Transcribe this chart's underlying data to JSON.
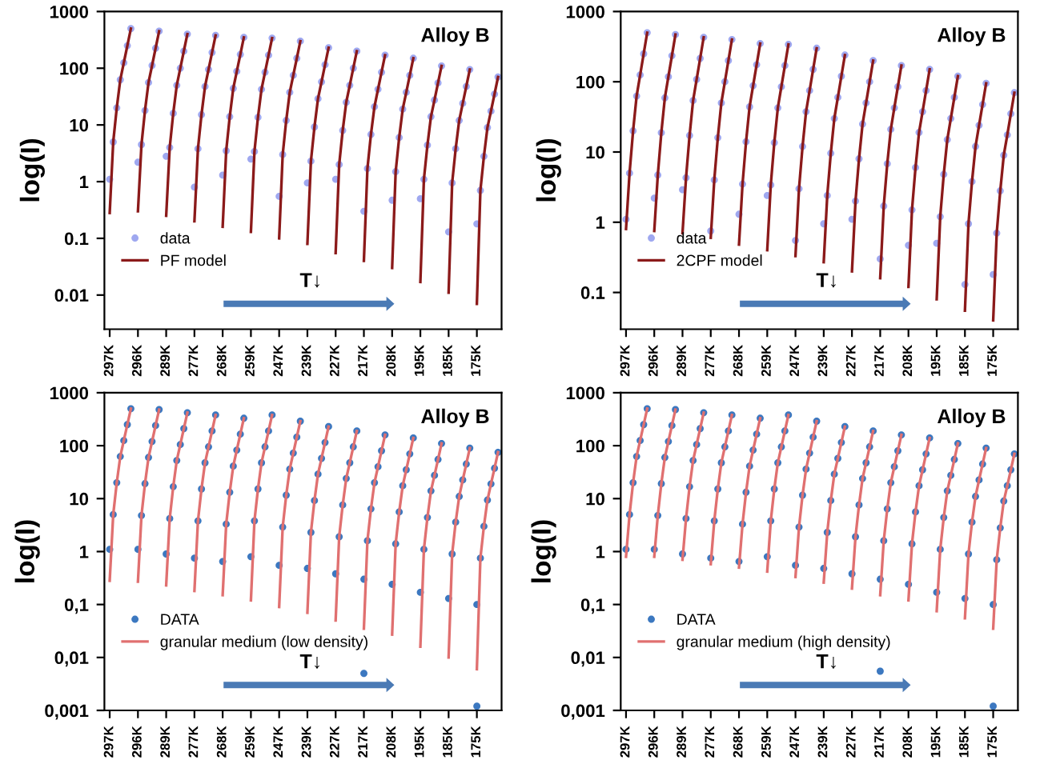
{
  "chart_data": [
    {
      "type": "line",
      "ylabel": "log(I)",
      "annotations": [
        "Alloy B",
        "T↓"
      ],
      "log": "y",
      "legend": "bottom left",
      "ylim": [
        0.0025,
        1000
      ],
      "yticks": [
        0.01,
        0.1,
        1,
        10,
        100,
        1000
      ],
      "categories": [
        "297K",
        null,
        null,
        null,
        null,
        null,
        null,
        null,
        "296K",
        null,
        null,
        null,
        null,
        null,
        null,
        null,
        "289K",
        null,
        null,
        null,
        null,
        null,
        null,
        null,
        "277K",
        null,
        null,
        null,
        null,
        null,
        null,
        null,
        "268K",
        null,
        null,
        null,
        null,
        null,
        null,
        null,
        "259K",
        null,
        null,
        null,
        null,
        null,
        null,
        null,
        "247K",
        null,
        null,
        null,
        null,
        null,
        null,
        null,
        "239K",
        null,
        null,
        null,
        null,
        null,
        null,
        null,
        "227K",
        null,
        null,
        null,
        null,
        null,
        null,
        null,
        "217K",
        null,
        null,
        null,
        null,
        null,
        null,
        null,
        "208K",
        null,
        null,
        null,
        null,
        null,
        null,
        null,
        "195K",
        null,
        null,
        null,
        null,
        null,
        null,
        null,
        "185K",
        null,
        null,
        null,
        null,
        null,
        null,
        null,
        "175K",
        null,
        null,
        null,
        null,
        null,
        null,
        null
      ],
      "series": [
        {
          "name": "data",
          "type": "scatter",
          "marker": "circle",
          "color": "#9fa8f0",
          "values": [
            1.1,
            5,
            20,
            62.5,
            125,
            250,
            500,
            null,
            2.2,
            4.5,
            18,
            56,
            112,
            225,
            450,
            null,
            2.8,
            4,
            16,
            50,
            100,
            200,
            400,
            null,
            0.8,
            3.8,
            15.2,
            47.5,
            95,
            190,
            380,
            null,
            1.3,
            3.5,
            14,
            44,
            88,
            175,
            350,
            null,
            2.5,
            3.4,
            13.6,
            42.5,
            85,
            170,
            340,
            null,
            0.55,
            3,
            12,
            37.5,
            75,
            150,
            300,
            null,
            0.95,
            2.3,
            9.2,
            29,
            57.5,
            115,
            230,
            null,
            1.1,
            2,
            8,
            25,
            50,
            100,
            200,
            null,
            0.3,
            1.7,
            6.8,
            21,
            42.5,
            85,
            170,
            null,
            0.47,
            1.5,
            6,
            19,
            37.5,
            75,
            150,
            null,
            0.5,
            1.1,
            4.4,
            14,
            27.5,
            55,
            110,
            null,
            0.13,
            0.95,
            3.8,
            12,
            24,
            47.5,
            95,
            null,
            0.18,
            0.7,
            2.8,
            9,
            17.5,
            35,
            70,
            null
          ]
        },
        {
          "name": "PF model",
          "color": "#8b1a1a",
          "values": [
            0.28,
            5,
            20,
            62.5,
            125,
            250,
            500,
            null,
            0.3,
            4.5,
            18,
            56,
            112,
            225,
            450,
            null,
            0.25,
            4,
            16,
            50,
            100,
            200,
            400,
            null,
            0.2,
            3.8,
            15.2,
            47.5,
            95,
            190,
            380,
            null,
            0.16,
            3.5,
            14,
            44,
            88,
            175,
            350,
            null,
            0.13,
            3.4,
            13.6,
            42.5,
            85,
            170,
            340,
            null,
            0.1,
            3,
            12,
            37.5,
            75,
            150,
            300,
            null,
            0.08,
            2.3,
            9.2,
            29,
            57.5,
            115,
            230,
            null,
            0.055,
            2,
            8,
            25,
            50,
            100,
            200,
            null,
            0.04,
            1.7,
            6.8,
            21,
            42.5,
            85,
            170,
            null,
            0.03,
            1.5,
            6,
            19,
            37.5,
            75,
            150,
            null,
            0.017,
            1.1,
            4.4,
            14,
            27.5,
            55,
            110,
            null,
            0.011,
            0.95,
            3.8,
            12,
            24,
            47.5,
            95,
            null,
            0.007,
            0.7,
            2.8,
            9,
            17.5,
            35,
            70,
            null
          ]
        }
      ]
    },
    {
      "type": "line",
      "ylabel": "log(I)",
      "annotations": [
        "Alloy B",
        "T↓"
      ],
      "log": "y",
      "legend": "bottom left",
      "ylim": [
        0.03,
        1000
      ],
      "yticks": [
        0.1,
        1,
        10,
        100,
        1000
      ],
      "categories": [
        "297K",
        null,
        null,
        null,
        null,
        null,
        null,
        null,
        "296K",
        null,
        null,
        null,
        null,
        null,
        null,
        null,
        "289K",
        null,
        null,
        null,
        null,
        null,
        null,
        null,
        "277K",
        null,
        null,
        null,
        null,
        null,
        null,
        null,
        "268K",
        null,
        null,
        null,
        null,
        null,
        null,
        null,
        "259K",
        null,
        null,
        null,
        null,
        null,
        null,
        null,
        "247K",
        null,
        null,
        null,
        null,
        null,
        null,
        null,
        "239K",
        null,
        null,
        null,
        null,
        null,
        null,
        null,
        "227K",
        null,
        null,
        null,
        null,
        null,
        null,
        null,
        "217K",
        null,
        null,
        null,
        null,
        null,
        null,
        null,
        "208K",
        null,
        null,
        null,
        null,
        null,
        null,
        null,
        "195K",
        null,
        null,
        null,
        null,
        null,
        null,
        null,
        "185K",
        null,
        null,
        null,
        null,
        null,
        null,
        null,
        "175K",
        null,
        null,
        null,
        null,
        null,
        null,
        null
      ],
      "series": [
        {
          "name": "data",
          "type": "scatter",
          "marker": "circle",
          "color": "#9fa8f0",
          "values": [
            1.1,
            5,
            20,
            62.5,
            125,
            250,
            500,
            null,
            2.2,
            4.7,
            18.8,
            59,
            118,
            235,
            470,
            null,
            2.9,
            4.3,
            17.2,
            54,
            108,
            215,
            430,
            null,
            0.75,
            4,
            16,
            50,
            100,
            200,
            400,
            null,
            1.3,
            3.5,
            14,
            44,
            88,
            175,
            350,
            null,
            2.4,
            3.4,
            13.6,
            42.5,
            85,
            170,
            340,
            null,
            0.55,
            3,
            12,
            37.5,
            75,
            150,
            300,
            null,
            0.95,
            2.4,
            9.6,
            30,
            60,
            120,
            240,
            null,
            1.1,
            2,
            8,
            25,
            50,
            100,
            200,
            null,
            0.3,
            1.7,
            6.8,
            21,
            42.5,
            85,
            170,
            null,
            0.47,
            1.5,
            6,
            19,
            37.5,
            75,
            150,
            null,
            0.5,
            1.2,
            4.8,
            15,
            30,
            60,
            120,
            null,
            0.13,
            0.95,
            3.8,
            12,
            24,
            47.5,
            95,
            null,
            0.18,
            0.7,
            2.8,
            9,
            17.5,
            35,
            70,
            null
          ]
        },
        {
          "name": "2CPF model",
          "color": "#8b1a1a",
          "values": [
            0.8,
            5,
            20,
            62.5,
            125,
            250,
            500,
            null,
            0.75,
            4.7,
            18.8,
            59,
            118,
            235,
            470,
            null,
            0.7,
            4.3,
            17.2,
            54,
            108,
            215,
            430,
            null,
            0.6,
            4,
            16,
            50,
            100,
            200,
            400,
            null,
            0.48,
            3.5,
            14,
            44,
            88,
            175,
            350,
            null,
            0.4,
            3.4,
            13.6,
            42.5,
            85,
            170,
            340,
            null,
            0.33,
            3,
            12,
            37.5,
            75,
            150,
            300,
            null,
            0.27,
            2.4,
            9.6,
            30,
            60,
            120,
            240,
            null,
            0.2,
            2,
            8,
            25,
            50,
            100,
            200,
            null,
            0.16,
            1.7,
            6.8,
            21,
            42.5,
            85,
            170,
            null,
            0.12,
            1.5,
            6,
            19,
            37.5,
            75,
            150,
            null,
            0.08,
            1.2,
            4.8,
            15,
            30,
            60,
            120,
            null,
            0.055,
            0.95,
            3.8,
            12,
            24,
            47.5,
            95,
            null,
            0.04,
            0.7,
            2.8,
            9,
            17.5,
            35,
            70,
            null
          ]
        }
      ]
    },
    {
      "type": "line",
      "ylabel": "log(I)",
      "annotations": [
        "Alloy B",
        "T↓"
      ],
      "log": "y",
      "legend": "bottom left",
      "ylim": [
        0.001,
        1000
      ],
      "yticks": [
        {
          "value": 0.001,
          "label": "0,001"
        },
        {
          "value": 0.01,
          "label": "0,01"
        },
        {
          "value": 0.1,
          "label": "0,1"
        },
        1,
        10,
        100,
        1000
      ],
      "categories": [
        "297K",
        null,
        null,
        null,
        null,
        null,
        null,
        null,
        "296K",
        null,
        null,
        null,
        null,
        null,
        null,
        null,
        "289K",
        null,
        null,
        null,
        null,
        null,
        null,
        null,
        "277K",
        null,
        null,
        null,
        null,
        null,
        null,
        null,
        "268K",
        null,
        null,
        null,
        null,
        null,
        null,
        null,
        "259K",
        null,
        null,
        null,
        null,
        null,
        null,
        null,
        "247K",
        null,
        null,
        null,
        null,
        null,
        null,
        null,
        "239K",
        null,
        null,
        null,
        null,
        null,
        null,
        null,
        "227K",
        null,
        null,
        null,
        null,
        null,
        null,
        null,
        "217K",
        null,
        null,
        null,
        null,
        null,
        null,
        null,
        "208K",
        null,
        null,
        null,
        null,
        null,
        null,
        null,
        "195K",
        null,
        null,
        null,
        null,
        null,
        null,
        null,
        "185K",
        null,
        null,
        null,
        null,
        null,
        null,
        null,
        "175K",
        null,
        null,
        null,
        null,
        null,
        null,
        null
      ],
      "series": [
        {
          "name": "DATA",
          "type": "scatter",
          "marker": "circle",
          "color": "#3c78c0",
          "values": [
            1.1,
            5,
            20,
            62.5,
            125,
            250,
            500,
            null,
            1.1,
            4.8,
            19.2,
            60,
            120,
            240,
            480,
            null,
            0.9,
            4.2,
            16.8,
            52.5,
            105,
            210,
            420,
            null,
            0.75,
            3.8,
            15.2,
            47.5,
            95,
            190,
            380,
            null,
            0.65,
            3.3,
            13.2,
            41,
            82.5,
            165,
            330,
            null,
            0.8,
            3.8,
            15.2,
            47.5,
            95,
            190,
            380,
            null,
            0.55,
            2.9,
            11.6,
            36,
            72.5,
            145,
            290,
            null,
            0.48,
            2.3,
            9.2,
            29,
            57.5,
            115,
            230,
            null,
            0.38,
            1.9,
            7.6,
            24,
            47.5,
            95,
            190,
            null,
            0.3,
            1.6,
            6.4,
            20,
            40,
            80,
            160,
            null,
            0.24,
            1.4,
            5.6,
            17.5,
            35,
            70,
            140,
            null,
            0.17,
            1.1,
            4.4,
            14,
            27.5,
            55,
            110,
            null,
            0.13,
            0.9,
            3.6,
            11,
            22.5,
            45,
            90,
            null,
            0.1,
            0.75,
            3,
            9.4,
            19,
            37.5,
            75,
            null
          ]
        },
        {
          "type": "scatter",
          "marker": "circle",
          "color": "#3c78c0",
          "values": [
            null,
            null,
            null,
            null,
            null,
            null,
            null,
            null,
            null,
            null,
            null,
            null,
            null,
            null,
            null,
            null,
            null,
            null,
            null,
            null,
            null,
            null,
            null,
            null,
            null,
            null,
            null,
            null,
            null,
            null,
            null,
            null,
            null,
            null,
            null,
            null,
            null,
            null,
            null,
            null,
            null,
            null,
            null,
            null,
            null,
            null,
            null,
            null,
            null,
            null,
            null,
            null,
            null,
            null,
            null,
            null,
            null,
            null,
            null,
            null,
            null,
            null,
            null,
            null,
            null,
            null,
            null,
            null,
            null,
            null,
            null,
            null,
            0.005,
            null,
            null,
            null,
            null,
            null,
            null,
            null,
            null,
            null,
            null,
            null,
            null,
            null,
            null,
            null,
            null,
            null,
            null,
            null,
            null,
            null,
            null,
            null,
            null,
            null,
            null,
            null,
            null,
            null,
            null,
            null,
            0.0012,
            null,
            null,
            null,
            null,
            null,
            null,
            null
          ]
        },
        {
          "name": "granular medium (low density)",
          "color": "#e07070",
          "values": [
            0.28,
            5,
            20,
            62.5,
            125,
            250,
            500,
            null,
            0.27,
            4.8,
            19.2,
            60,
            120,
            240,
            480,
            null,
            0.23,
            4.2,
            16.8,
            52.5,
            105,
            210,
            420,
            null,
            0.18,
            3.8,
            15.2,
            47.5,
            95,
            190,
            380,
            null,
            0.15,
            3.3,
            13.2,
            41,
            82.5,
            165,
            330,
            null,
            0.12,
            3.8,
            15.2,
            47.5,
            95,
            190,
            380,
            null,
            0.09,
            2.9,
            11.6,
            36,
            72.5,
            145,
            290,
            null,
            0.07,
            2.3,
            9.2,
            29,
            57.5,
            115,
            230,
            null,
            0.05,
            1.9,
            7.6,
            24,
            47.5,
            95,
            190,
            null,
            0.035,
            1.6,
            6.4,
            20,
            40,
            80,
            160,
            null,
            0.027,
            1.4,
            5.6,
            17.5,
            35,
            70,
            140,
            null,
            0.016,
            1.1,
            4.4,
            14,
            27.5,
            55,
            110,
            null,
            0.01,
            0.9,
            3.6,
            11,
            22.5,
            45,
            90,
            null,
            0.006,
            0.75,
            3,
            9.4,
            19,
            37.5,
            75,
            null
          ]
        }
      ]
    },
    {
      "type": "line",
      "ylabel": "log(I)",
      "annotations": [
        "Alloy B",
        "T↓"
      ],
      "log": "y",
      "legend": "bottom left",
      "ylim": [
        0.001,
        1000
      ],
      "yticks": [
        {
          "value": 0.001,
          "label": "0,001"
        },
        {
          "value": 0.01,
          "label": "0,01"
        },
        {
          "value": 0.1,
          "label": "0,1"
        },
        1,
        10,
        100,
        1000
      ],
      "categories": [
        "297K",
        null,
        null,
        null,
        null,
        null,
        null,
        null,
        "296K",
        null,
        null,
        null,
        null,
        null,
        null,
        null,
        "289K",
        null,
        null,
        null,
        null,
        null,
        null,
        null,
        "277K",
        null,
        null,
        null,
        null,
        null,
        null,
        null,
        "268K",
        null,
        null,
        null,
        null,
        null,
        null,
        null,
        "259K",
        null,
        null,
        null,
        null,
        null,
        null,
        null,
        "247K",
        null,
        null,
        null,
        null,
        null,
        null,
        null,
        "239K",
        null,
        null,
        null,
        null,
        null,
        null,
        null,
        "227K",
        null,
        null,
        null,
        null,
        null,
        null,
        null,
        "217K",
        null,
        null,
        null,
        null,
        null,
        null,
        null,
        "208K",
        null,
        null,
        null,
        null,
        null,
        null,
        null,
        "195K",
        null,
        null,
        null,
        null,
        null,
        null,
        null,
        "185K",
        null,
        null,
        null,
        null,
        null,
        null,
        null,
        "175K",
        null,
        null,
        null,
        null,
        null,
        null,
        null
      ],
      "series": [
        {
          "name": "DATA",
          "type": "scatter",
          "marker": "circle",
          "color": "#3c78c0",
          "values": [
            1.1,
            5,
            20,
            62.5,
            125,
            250,
            500,
            null,
            1.1,
            4.8,
            19.2,
            60,
            120,
            240,
            480,
            null,
            0.9,
            4.2,
            16.8,
            52.5,
            105,
            210,
            420,
            null,
            0.75,
            3.8,
            15.2,
            47.5,
            95,
            190,
            380,
            null,
            0.65,
            3.3,
            13.2,
            41,
            82.5,
            165,
            330,
            null,
            0.8,
            3.8,
            15.2,
            47.5,
            95,
            190,
            380,
            null,
            0.55,
            2.9,
            11.6,
            36,
            72.5,
            145,
            290,
            null,
            0.48,
            2.3,
            9.2,
            29,
            57.5,
            115,
            230,
            null,
            0.38,
            1.9,
            7.6,
            24,
            47.5,
            95,
            190,
            null,
            0.3,
            1.6,
            6.4,
            20,
            40,
            80,
            160,
            null,
            0.24,
            1.4,
            5.6,
            17.5,
            35,
            70,
            140,
            null,
            0.17,
            1.1,
            4.4,
            14,
            27.5,
            55,
            110,
            null,
            0.13,
            0.9,
            3.6,
            11,
            22.5,
            45,
            90,
            null,
            0.1,
            0.7,
            2.8,
            9,
            17.5,
            35,
            70,
            null
          ]
        },
        {
          "type": "scatter",
          "marker": "circle",
          "color": "#3c78c0",
          "values": [
            null,
            null,
            null,
            null,
            null,
            null,
            null,
            null,
            null,
            null,
            null,
            null,
            null,
            null,
            null,
            null,
            null,
            null,
            null,
            null,
            null,
            null,
            null,
            null,
            null,
            null,
            null,
            null,
            null,
            null,
            null,
            null,
            null,
            null,
            null,
            null,
            null,
            null,
            null,
            null,
            null,
            null,
            null,
            null,
            null,
            null,
            null,
            null,
            null,
            null,
            null,
            null,
            null,
            null,
            null,
            null,
            null,
            null,
            null,
            null,
            null,
            null,
            null,
            null,
            null,
            null,
            null,
            null,
            null,
            null,
            null,
            null,
            0.0055,
            null,
            null,
            null,
            null,
            null,
            null,
            null,
            null,
            null,
            null,
            null,
            null,
            null,
            null,
            null,
            null,
            null,
            null,
            null,
            null,
            null,
            null,
            null,
            null,
            null,
            null,
            null,
            null,
            null,
            null,
            null,
            0.0012,
            null,
            null,
            null,
            null,
            null,
            null,
            null
          ]
        },
        {
          "name": "granular medium (high density)",
          "color": "#e07070",
          "values": [
            0.8,
            5,
            20,
            62.5,
            125,
            250,
            500,
            null,
            0.8,
            4.8,
            19.2,
            60,
            120,
            240,
            480,
            null,
            0.7,
            4.2,
            16.8,
            52.5,
            105,
            210,
            420,
            null,
            0.58,
            3.8,
            15.2,
            47.5,
            95,
            190,
            380,
            null,
            0.5,
            3.3,
            13.2,
            41,
            82.5,
            165,
            330,
            null,
            0.42,
            3.8,
            15.2,
            47.5,
            95,
            190,
            380,
            null,
            0.33,
            2.9,
            11.6,
            36,
            72.5,
            145,
            290,
            null,
            0.26,
            2.3,
            9.2,
            29,
            57.5,
            115,
            230,
            null,
            0.2,
            1.9,
            7.6,
            24,
            47.5,
            95,
            190,
            null,
            0.15,
            1.6,
            6.4,
            20,
            40,
            80,
            160,
            null,
            0.12,
            1.4,
            5.6,
            17.5,
            35,
            70,
            140,
            null,
            0.075,
            1.1,
            4.4,
            14,
            27.5,
            55,
            110,
            null,
            0.055,
            0.9,
            3.6,
            11,
            22.5,
            45,
            90,
            null,
            0.035,
            0.7,
            2.8,
            9,
            17.5,
            35,
            70,
            null
          ]
        }
      ]
    }
  ]
}
